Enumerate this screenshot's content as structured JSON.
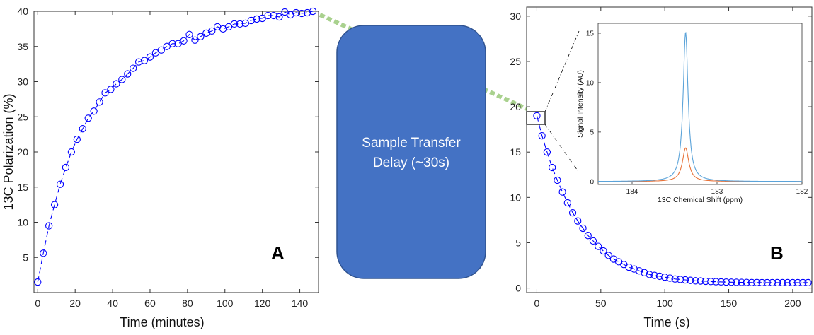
{
  "transfer_box": {
    "line1": "Sample Transfer",
    "line2": "Delay (~30s)",
    "fill": "#4472C4",
    "stroke": "#2F528F"
  },
  "link_color": "#A9D18E",
  "chart_data": [
    {
      "type": "scatter",
      "panel": "A",
      "xlabel": "Time (minutes)",
      "ylabel": "13C Polarization (%)",
      "xlim": [
        -2,
        150
      ],
      "ylim": [
        0,
        40
      ],
      "xticks": [
        0,
        20,
        40,
        60,
        80,
        100,
        120,
        140
      ],
      "yticks": [
        5,
        10,
        15,
        20,
        25,
        30,
        35,
        40
      ],
      "marker": "open-circle",
      "line_style": "dashed",
      "color": "#0000FF",
      "x": [
        0,
        3,
        6,
        9,
        12,
        15,
        18,
        21,
        24,
        27,
        30,
        33,
        36,
        39,
        42,
        45,
        48,
        51,
        54,
        57,
        60,
        63,
        66,
        69,
        72,
        75,
        78,
        81,
        84,
        87,
        90,
        93,
        96,
        99,
        102,
        105,
        108,
        111,
        114,
        117,
        120,
        123,
        126,
        129,
        132,
        135,
        138,
        141,
        144,
        147
      ],
      "y": [
        1.5,
        5.6,
        9.5,
        12.5,
        15.4,
        17.8,
        20.0,
        21.8,
        23.3,
        24.8,
        25.8,
        27.1,
        28.4,
        28.9,
        29.7,
        30.3,
        31.1,
        31.9,
        32.8,
        33.0,
        33.5,
        34.1,
        34.5,
        35.0,
        35.4,
        35.4,
        35.8,
        36.7,
        35.9,
        36.4,
        36.9,
        37.2,
        37.8,
        37.5,
        37.8,
        38.2,
        38.2,
        38.3,
        38.7,
        38.9,
        39.0,
        39.4,
        39.4,
        39.2,
        39.9,
        39.5,
        39.8,
        39.7,
        39.8,
        40.0
      ]
    },
    {
      "type": "scatter",
      "panel": "B",
      "xlabel": "Time (s)",
      "ylabel": "",
      "xlim": [
        -8,
        215
      ],
      "ylim": [
        -0.5,
        31
      ],
      "xticks": [
        0,
        50,
        100,
        150,
        200
      ],
      "yticks": [
        0,
        5,
        10,
        15,
        20,
        25,
        30
      ],
      "marker": "open-circle",
      "line_style": "dashed",
      "color": "#0000FF",
      "x": [
        0,
        4,
        8,
        12,
        16,
        20,
        24,
        28,
        32,
        36,
        40,
        44,
        48,
        52,
        56,
        60,
        64,
        68,
        72,
        76,
        80,
        84,
        88,
        92,
        96,
        100,
        104,
        108,
        112,
        116,
        120,
        124,
        128,
        132,
        136,
        140,
        144,
        148,
        152,
        156,
        160,
        164,
        168,
        172,
        176,
        180,
        184,
        188,
        192,
        196,
        200,
        204,
        208,
        212
      ],
      "y": [
        19.0,
        16.8,
        15.0,
        13.3,
        11.9,
        10.6,
        9.4,
        8.3,
        7.4,
        6.6,
        5.8,
        5.2,
        4.6,
        4.1,
        3.6,
        3.2,
        2.9,
        2.6,
        2.3,
        2.1,
        1.9,
        1.7,
        1.5,
        1.4,
        1.3,
        1.2,
        1.1,
        1.0,
        0.95,
        0.9,
        0.85,
        0.8,
        0.78,
        0.75,
        0.72,
        0.7,
        0.68,
        0.66,
        0.65,
        0.64,
        0.63,
        0.62,
        0.61,
        0.61,
        0.6,
        0.6,
        0.6,
        0.6,
        0.6,
        0.6,
        0.6,
        0.6,
        0.6,
        0.6
      ]
    },
    {
      "type": "line",
      "panel": "B-inset",
      "xlabel": "13C Chemical Shift (ppm)",
      "ylabel": "Signal Intensity (AU)",
      "xlim": [
        184.4,
        182
      ],
      "ylim": [
        -0.3,
        16
      ],
      "xticks": [
        184,
        183,
        182
      ],
      "yticks": [
        0,
        5,
        10,
        15
      ],
      "x_reversed": true,
      "series": [
        {
          "color": "#5BA3D9",
          "peak_center": 183.37,
          "peak_height": 15.1,
          "peak_halfwidth": 0.035
        },
        {
          "color": "#E8743B",
          "peak_center": 183.37,
          "peak_height": 3.4,
          "peak_halfwidth": 0.045
        }
      ]
    }
  ]
}
